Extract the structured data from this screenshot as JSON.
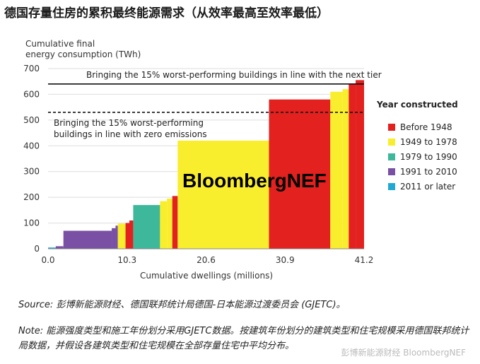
{
  "title": "德国存量住房的累积最终能源需求（从效率最高至效率最低）",
  "chart_data": {
    "type": "bar",
    "ylabel": "Cumulative final energy consumption (TWh)",
    "ylabel_line1": "Cumulative final",
    "ylabel_line2": "energy consumption (TWh)",
    "xlabel": "Cumulative dwellings (millions)",
    "ylim": [
      0,
      700
    ],
    "xlim": [
      0,
      41.2
    ],
    "y_ticks": [
      "0",
      "100",
      "200",
      "300",
      "400",
      "500",
      "600",
      "700"
    ],
    "y_tick_values": [
      0,
      100,
      200,
      300,
      400,
      500,
      600,
      700
    ],
    "x_ticks": [
      "0.0",
      "10.3",
      "20.6",
      "30.9",
      "41.2"
    ],
    "x_tick_values": [
      0.0,
      10.3,
      20.6,
      30.9,
      41.2
    ],
    "reference_lines": [
      {
        "label": "Bringing the 15% worst-performing buildings in line with the next tier",
        "value": 640,
        "style": "solid"
      },
      {
        "label_line1": "Bringing the 15% worst-performing",
        "label_line2": "buildings in line with zero emissions",
        "value": 530,
        "style": "dashed"
      }
    ],
    "legend_title": "Year constructed",
    "legend": [
      {
        "name": "Before 1948",
        "color": "#e3211f"
      },
      {
        "name": "1949 to 1978",
        "color": "#f9ee2d"
      },
      {
        "name": "1979 to 1990",
        "color": "#3db89a"
      },
      {
        "name": "1991 to 2010",
        "color": "#7950a4"
      },
      {
        "name": "2011 or later",
        "color": "#21a9d3"
      }
    ],
    "segments": [
      {
        "x0": 0.0,
        "x1": 1.0,
        "y": 5,
        "group": "2011 or later"
      },
      {
        "x0": 1.0,
        "x1": 2.0,
        "y": 10,
        "group": "1991 to 2010"
      },
      {
        "x0": 2.0,
        "x1": 8.3,
        "y": 70,
        "group": "1991 to 2010"
      },
      {
        "x0": 8.3,
        "x1": 8.8,
        "y": 80,
        "group": "1991 to 2010"
      },
      {
        "x0": 8.8,
        "x1": 9.1,
        "y": 90,
        "group": "1991 to 2010"
      },
      {
        "x0": 9.1,
        "x1": 10.1,
        "y": 98,
        "group": "1949 to 1978"
      },
      {
        "x0": 10.1,
        "x1": 10.6,
        "y": 100,
        "group": "Before 1948"
      },
      {
        "x0": 10.6,
        "x1": 11.1,
        "y": 110,
        "group": "Before 1948"
      },
      {
        "x0": 11.1,
        "x1": 14.6,
        "y": 170,
        "group": "1979 to 1990"
      },
      {
        "x0": 14.6,
        "x1": 15.5,
        "y": 185,
        "group": "1949 to 1978"
      },
      {
        "x0": 15.5,
        "x1": 16.2,
        "y": 195,
        "group": "1949 to 1978"
      },
      {
        "x0": 16.2,
        "x1": 16.9,
        "y": 205,
        "group": "Before 1948"
      },
      {
        "x0": 16.9,
        "x1": 28.8,
        "y": 420,
        "group": "1949 to 1978"
      },
      {
        "x0": 28.8,
        "x1": 36.8,
        "y": 580,
        "group": "Before 1948"
      },
      {
        "x0": 36.8,
        "x1": 38.4,
        "y": 610,
        "group": "1949 to 1978"
      },
      {
        "x0": 38.4,
        "x1": 39.2,
        "y": 620,
        "group": "1949 to 1978"
      },
      {
        "x0": 39.2,
        "x1": 40.1,
        "y": 640,
        "group": "Before 1948"
      },
      {
        "x0": 40.1,
        "x1": 41.2,
        "y": 655,
        "group": "Before 1948"
      }
    ],
    "brand": "BloombergNEF"
  },
  "source": "Source: 彭博新能源财经、德国联邦统计局德国-日本能源过渡委员会 (GJETC)。",
  "note": "Note: 能源强度类型和施工年份划分采用GJETC数据。按建筑年份划分的建筑类型和住宅规模采用德国联邦统计局数据，并假设各建筑类型和住宅规模在全部存量住宅中平均分布。",
  "watermark": "彭博新能源财经 BloombergNEF"
}
